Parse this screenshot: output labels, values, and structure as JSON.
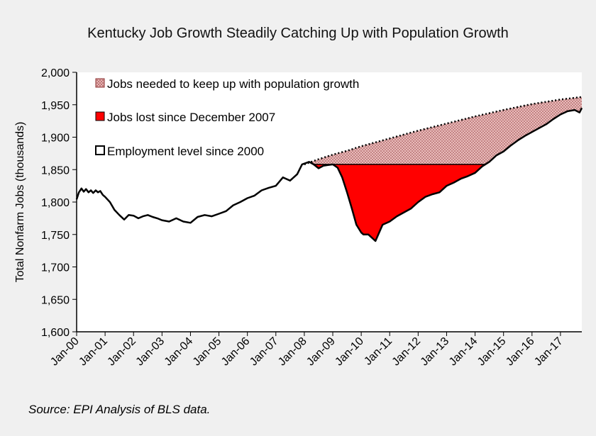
{
  "chart_data": {
    "type": "area",
    "title": "Kentucky Job Growth  Steadily Catching Up with Population Growth",
    "ylabel": "Total Nonfarm Jobs (thousands)",
    "xlabel": "",
    "ylim": [
      1600,
      2000
    ],
    "y_ticks": [
      1600,
      1650,
      1700,
      1750,
      1800,
      1850,
      1900,
      1950,
      2000
    ],
    "y_tick_labels": [
      "1,600",
      "1,650",
      "1,700",
      "1,750",
      "1,800",
      "1,850",
      "1,900",
      "1,950",
      "2,000"
    ],
    "x_range": [
      2000.0,
      2017.75
    ],
    "x_ticks": [
      2000,
      2001,
      2002,
      2003,
      2004,
      2005,
      2006,
      2007,
      2008,
      2009,
      2010,
      2011,
      2012,
      2013,
      2014,
      2015,
      2016,
      2017
    ],
    "x_tick_labels": [
      "Jan-00",
      "Jan-01",
      "Jan-02",
      "Jan-03",
      "Jan-04",
      "Jan-05",
      "Jan-06",
      "Jan-07",
      "Jan-08",
      "Jan-09",
      "Jan-10",
      "Jan-11",
      "Jan-12",
      "Jan-13",
      "Jan-14",
      "Jan-15",
      "Jan-16",
      "Jan-17"
    ],
    "x_value_unit": "year (decimal)",
    "legend": [
      {
        "label": "Jobs needed to keep up with population growth",
        "swatch": "pattern"
      },
      {
        "label": "Jobs lost since December 2007",
        "swatch": "red"
      },
      {
        "label": "Employment level since 2000",
        "swatch": "white"
      }
    ],
    "legend_position": "top-left",
    "dec2007_level": 1858,
    "series": [
      {
        "key": "employment",
        "x": [
          2000.0,
          2000.08,
          2000.17,
          2000.25,
          2000.33,
          2000.42,
          2000.5,
          2000.58,
          2000.67,
          2000.75,
          2000.83,
          2000.92,
          2001.0,
          2001.17,
          2001.33,
          2001.5,
          2001.67,
          2001.83,
          2002.0,
          2002.17,
          2002.33,
          2002.5,
          2002.67,
          2002.83,
          2003.0,
          2003.25,
          2003.5,
          2003.75,
          2004.0,
          2004.25,
          2004.5,
          2004.75,
          2005.0,
          2005.25,
          2005.5,
          2005.75,
          2006.0,
          2006.25,
          2006.5,
          2006.75,
          2007.0,
          2007.25,
          2007.5,
          2007.75,
          2007.92,
          2008.17,
          2008.33,
          2008.5,
          2008.67,
          2008.83,
          2009.0,
          2009.17,
          2009.33,
          2009.5,
          2009.67,
          2009.83,
          2010.0,
          2010.08,
          2010.25,
          2010.5,
          2010.75,
          2011.0,
          2011.25,
          2011.5,
          2011.75,
          2012.0,
          2012.25,
          2012.5,
          2012.75,
          2013.0,
          2013.25,
          2013.5,
          2013.75,
          2014.0,
          2014.25,
          2014.5,
          2014.75,
          2015.0,
          2015.25,
          2015.5,
          2015.75,
          2016.0,
          2016.25,
          2016.5,
          2016.75,
          2017.0,
          2017.25,
          2017.5,
          2017.67,
          2017.75
        ],
        "y": [
          1804,
          1815,
          1821,
          1816,
          1820,
          1815,
          1818,
          1814,
          1818,
          1815,
          1817,
          1811,
          1808,
          1800,
          1788,
          1780,
          1773,
          1780,
          1779,
          1775,
          1778,
          1780,
          1777,
          1775,
          1772,
          1770,
          1775,
          1770,
          1768,
          1777,
          1780,
          1778,
          1782,
          1786,
          1795,
          1800,
          1806,
          1810,
          1818,
          1822,
          1825,
          1838,
          1833,
          1843,
          1858,
          1862,
          1858,
          1852,
          1856,
          1857,
          1858,
          1853,
          1838,
          1815,
          1790,
          1765,
          1753,
          1750,
          1750,
          1740,
          1765,
          1770,
          1778,
          1784,
          1790,
          1800,
          1808,
          1812,
          1815,
          1825,
          1830,
          1836,
          1840,
          1845,
          1855,
          1862,
          1872,
          1878,
          1887,
          1895,
          1902,
          1908,
          1914,
          1920,
          1928,
          1935,
          1940,
          1942,
          1938,
          1945
        ]
      },
      {
        "key": "population_trend",
        "x": [
          2008.0,
          2008.5,
          2009.0,
          2009.5,
          2010.0,
          2010.5,
          2011.0,
          2012.0,
          2013.0,
          2014.0,
          2015.0,
          2016.0,
          2017.0,
          2017.75
        ],
        "y": [
          1858,
          1866,
          1873,
          1879,
          1886,
          1892,
          1898,
          1910,
          1921,
          1932,
          1942,
          1951,
          1958,
          1962
        ]
      }
    ]
  },
  "source_note": "Source: EPI Analysis of BLS data."
}
